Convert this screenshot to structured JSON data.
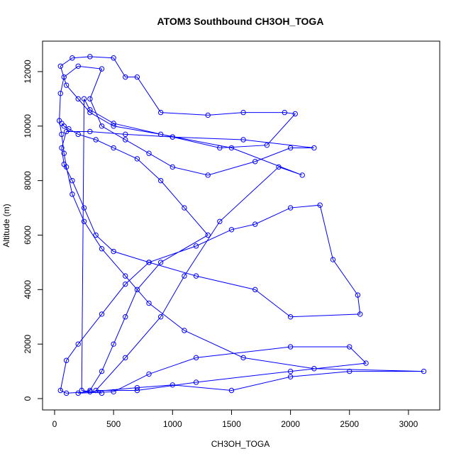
{
  "chart_data": {
    "type": "line",
    "title": "ATOM3 Southbound CH3OH_TOGA",
    "x_label": "CH3OH_TOGA",
    "y_label": "Altitude (m)",
    "color": "#0000ff",
    "marker": "open-circle",
    "xlim": [
      -102,
      3265
    ],
    "ylim": [
      -416,
      13118
    ],
    "xticks": [
      0,
      500,
      1000,
      1500,
      2000,
      2500,
      3000
    ],
    "yticks": [
      0,
      2000,
      4000,
      6000,
      8000,
      10000,
      12000
    ],
    "x": [
      60,
      80,
      120,
      200,
      350,
      500,
      700,
      900,
      1100,
      1300,
      900,
      700,
      600,
      500,
      400,
      300,
      200,
      500,
      800,
      1200,
      2000,
      2500,
      2640,
      2000,
      1200,
      700,
      350,
      600,
      900,
      1100,
      1400,
      1900,
      2100,
      1500,
      900,
      500,
      300,
      200,
      100,
      50,
      150,
      300,
      500,
      600,
      700,
      900,
      1300,
      1600,
      1950,
      2040,
      1800,
      1400,
      1000,
      600,
      300,
      100,
      60,
      80,
      150,
      250,
      350,
      500,
      800,
      1200,
      1700,
      2000,
      2590,
      2570,
      2360,
      2250,
      2000,
      1700,
      1500,
      1200,
      800,
      600,
      400,
      200,
      100,
      50,
      100,
      300,
      700,
      1000,
      1500,
      2000,
      2500,
      3130,
      2200,
      1600,
      1100,
      800,
      600,
      400,
      250,
      150,
      100,
      80,
      60,
      40,
      50,
      80,
      200,
      400,
      300,
      400,
      600,
      800,
      1000,
      1300,
      1700,
      2000,
      2200,
      1600,
      1000,
      500,
      300,
      250,
      230,
      400
    ],
    "values": [
      10100,
      10000,
      9900,
      9700,
      9500,
      9200,
      8800,
      8000,
      7000,
      6000,
      5000,
      4000,
      3000,
      2000,
      1000,
      300,
      200,
      250,
      900,
      1500,
      1900,
      1900,
      1300,
      1000,
      600,
      300,
      300,
      1500,
      3000,
      4500,
      6500,
      8500,
      8200,
      9200,
      9700,
      10000,
      10500,
      11000,
      11500,
      12200,
      12500,
      12550,
      12500,
      11800,
      11800,
      10500,
      10400,
      10500,
      10500,
      10450,
      9300,
      9200,
      9600,
      9700,
      9800,
      9800,
      9200,
      8600,
      8000,
      7000,
      6000,
      5400,
      5000,
      4500,
      4000,
      3000,
      3100,
      3800,
      5100,
      7100,
      7000,
      6400,
      6200,
      5600,
      5000,
      4200,
      3100,
      2000,
      1400,
      300,
      200,
      250,
      400,
      500,
      300,
      800,
      1000,
      1000,
      1100,
      1500,
      2500,
      3500,
      4500,
      5500,
      6500,
      7500,
      8500,
      9000,
      9700,
      10200,
      11200,
      11800,
      12200,
      12100,
      11000,
      10000,
      9500,
      9000,
      8500,
      8200,
      8700,
      9200,
      9200,
      9500,
      9600,
      10100,
      10600,
      11000,
      300,
      200
    ]
  }
}
